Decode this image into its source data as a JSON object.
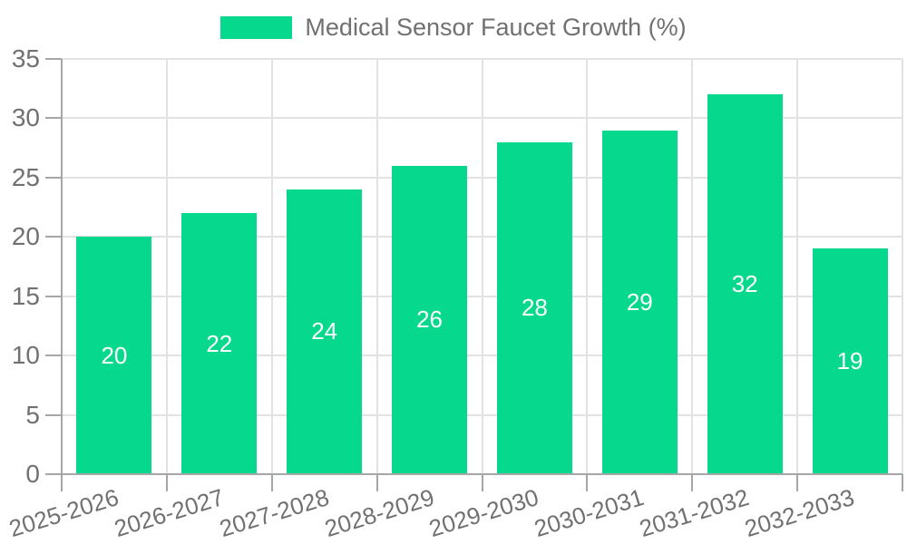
{
  "colors": {
    "bar": "#06d98d",
    "grid": "#e2e2e2",
    "axis": "#a6a6a6",
    "text": "#717171",
    "value_text": "#ffffff",
    "background": "#ffffff"
  },
  "chart_data": {
    "type": "bar",
    "title": "",
    "series_name": "Medical Sensor Faucet Growth (%)",
    "categories": [
      "2025-2026",
      "2026-2027",
      "2027-2028",
      "2028-2029",
      "2029-2030",
      "2030-2031",
      "2031-2032",
      "2032-2033"
    ],
    "values": [
      20,
      22,
      24,
      26,
      28,
      29,
      32,
      19
    ],
    "xlabel": "",
    "ylabel": "",
    "ylim": [
      0,
      35
    ],
    "yticks": [
      0,
      5,
      10,
      15,
      20,
      25,
      30,
      35
    ],
    "grid": true,
    "legend_position": "top",
    "value_labels": "inside-center"
  }
}
